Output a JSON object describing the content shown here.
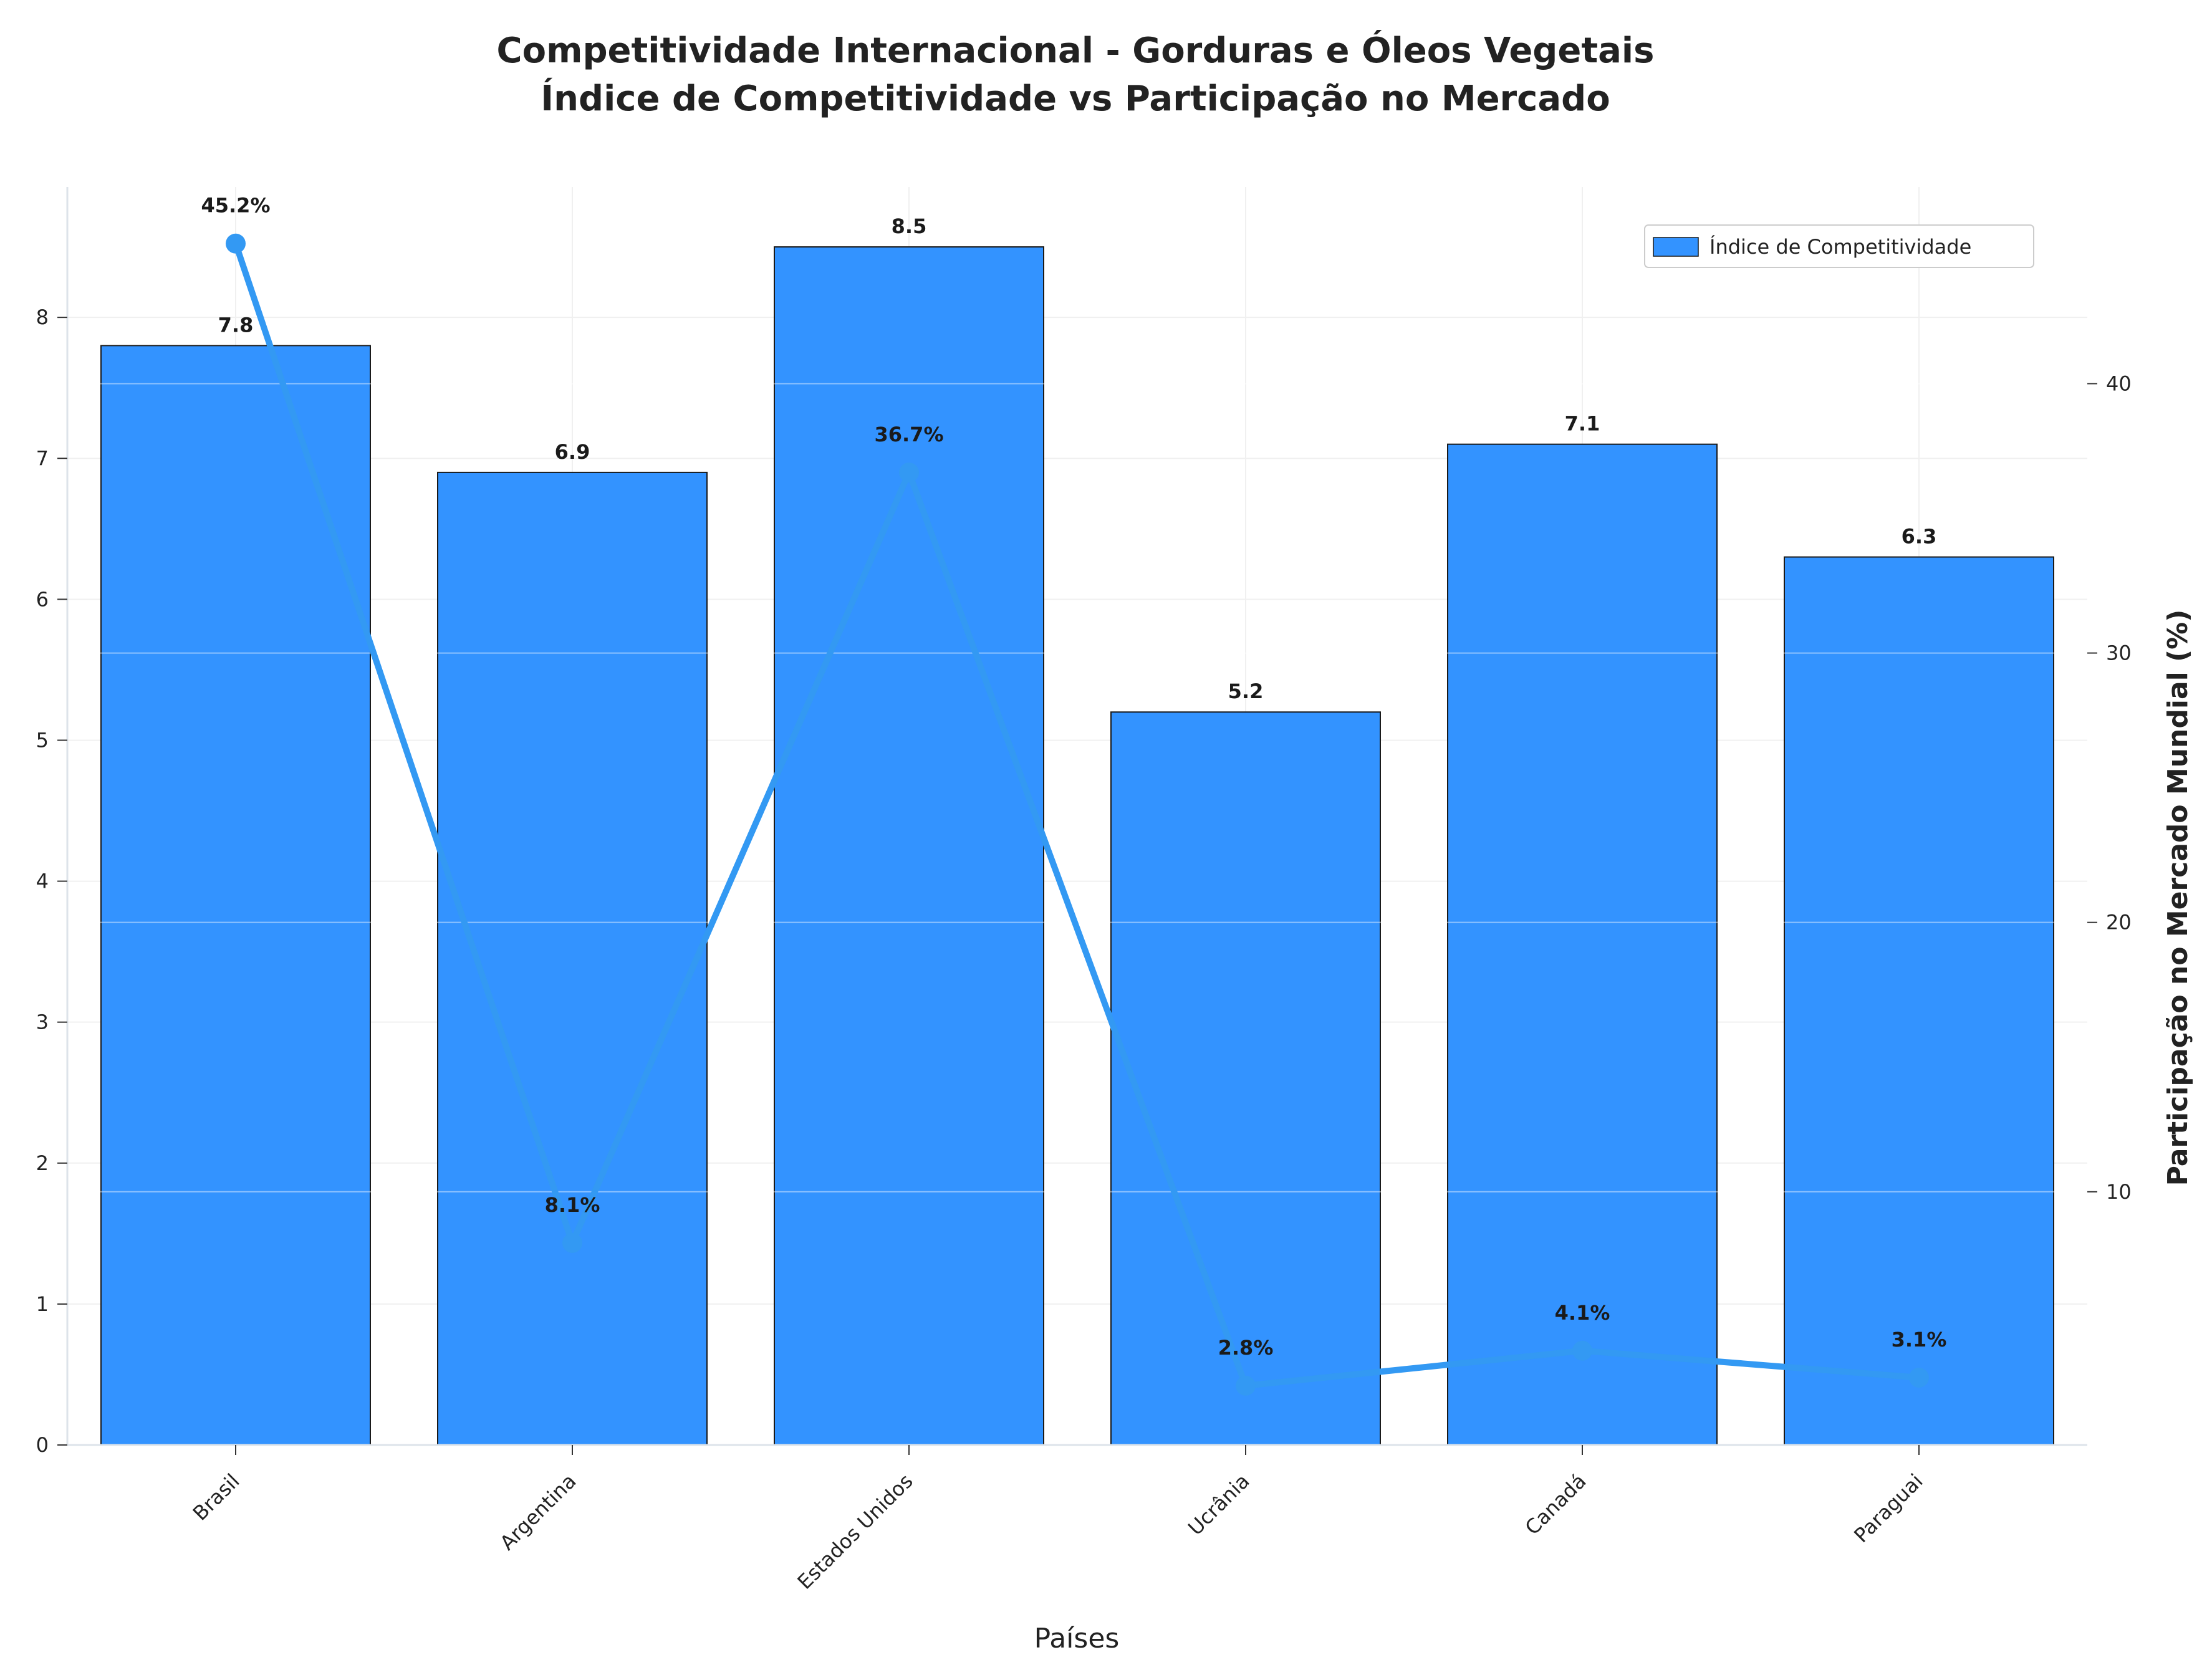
{
  "chart_data": {
    "type": "bar",
    "title_line1": "Competitividade Internacional - Gorduras e Óleos Vegetais",
    "title_line2": "Índice de Competitividade vs Participação no Mercado",
    "xlabel": "Países",
    "ylabel": "",
    "ylabel_right": "Participação no Mercado Mundial (%)",
    "categories": [
      "Brasil",
      "Argentina",
      "Estados Unidos",
      "Ucrânia",
      "Canadá",
      "Paraguai"
    ],
    "series": [
      {
        "name": "Índice de Competitividade",
        "type": "bar",
        "axis": "left",
        "values": [
          7.8,
          6.9,
          8.5,
          5.2,
          7.1,
          6.3
        ],
        "labels": [
          "7.8",
          "6.9",
          "8.5",
          "5.2",
          "7.1",
          "6.3"
        ]
      },
      {
        "type": "line",
        "axis": "right",
        "values": [
          45.2,
          8.1,
          36.7,
          2.8,
          4.1,
          3.1
        ],
        "labels": [
          "45.2%",
          "8.1%",
          "36.7%",
          "2.8%",
          "4.1%",
          "3.1%"
        ]
      }
    ],
    "ylim": [
      0,
      8.925
    ],
    "y_ticks": [
      "0",
      "1",
      "2",
      "3",
      "4",
      "5",
      "6",
      "7",
      "8"
    ],
    "ylim_right": [
      0.6,
      47.3
    ],
    "y_ticks_right": [
      "10",
      "20",
      "30",
      "40"
    ],
    "legend": {
      "position": "top-right",
      "label": "Índice de Competitividade"
    },
    "grid": true,
    "colors": {
      "bar": "#3393ff",
      "line": "#3399f3",
      "bar_edge": "#1a1a1a",
      "axis": "#dde3ea"
    }
  }
}
